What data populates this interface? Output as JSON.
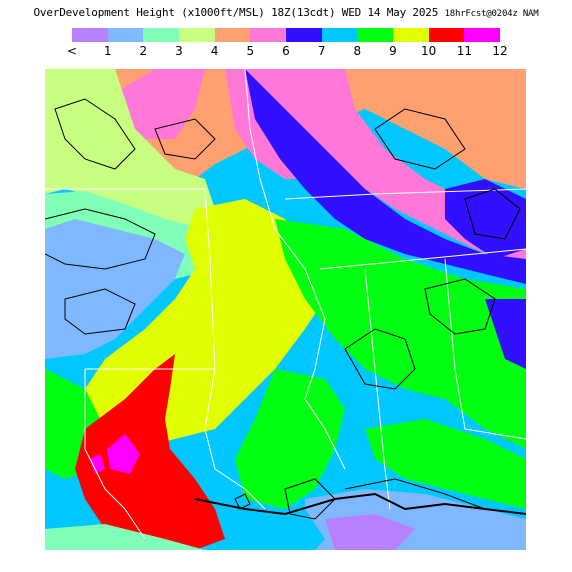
{
  "header": {
    "title_main": "OverDevelopment Height (x1000ft/MSL) 18Z(13cdt) WED 14 May 2025",
    "title_suffix": "18hrFcst@0204z NAM"
  },
  "legend": {
    "swatches": [
      "#b880ff",
      "#80b8ff",
      "#80ffb8",
      "#c8ff80",
      "#ffa070",
      "#ff78d8",
      "#3010ff",
      "#00c8ff",
      "#00ff10",
      "#e0ff00",
      "#ff0000",
      "#ff00ff"
    ],
    "labels": [
      "<",
      "1",
      "2",
      "3",
      "4",
      "5",
      "6",
      "7",
      "8",
      "9",
      "10",
      "11",
      "12"
    ]
  },
  "map": {
    "colors": {
      "orange": "#ffa070",
      "pink": "#ff78d8",
      "blue6": "#3010ff",
      "cyan7": "#00c8ff",
      "green8": "#00ff10",
      "yellow9": "#e0ff00",
      "red10": "#ff0000",
      "magenta11": "#ff00ff",
      "lightgreen3": "#c8ff80",
      "aqua2": "#80ffb8",
      "skyblue1": "#80b8ff",
      "lavender0": "#b880ff"
    }
  }
}
